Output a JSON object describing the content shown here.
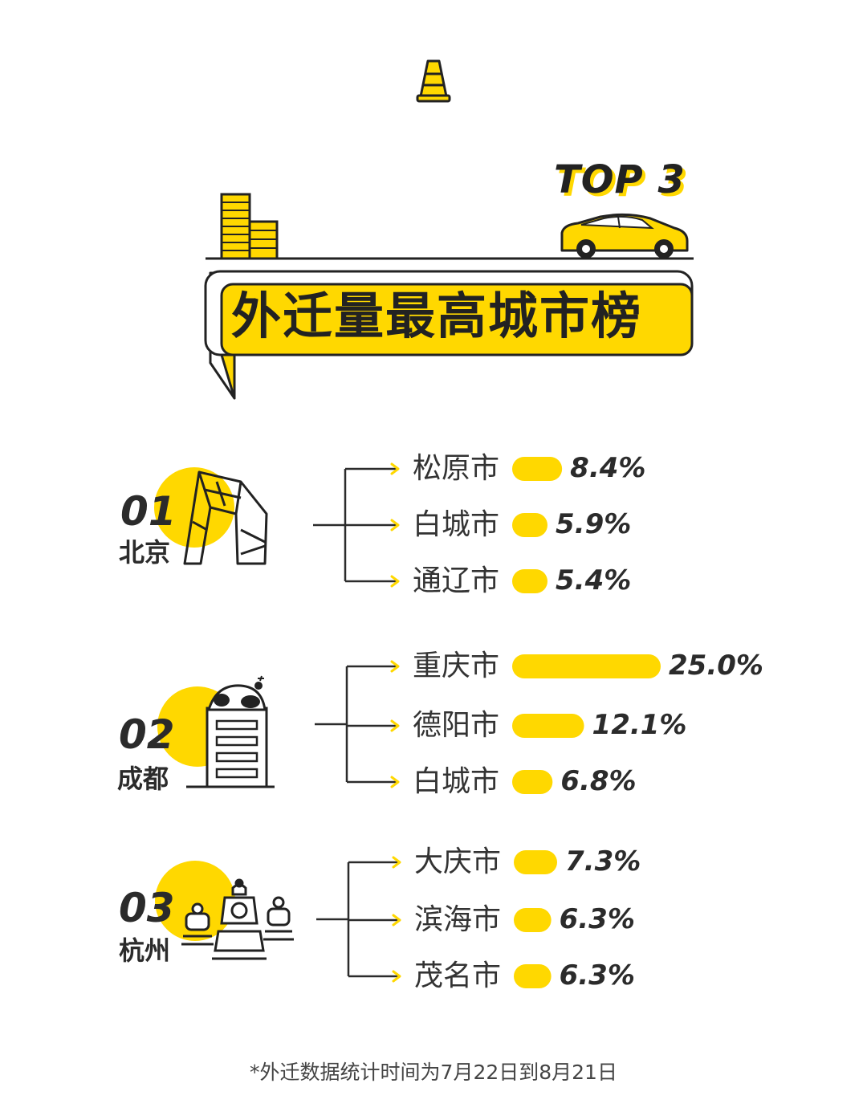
{
  "header": {
    "badge": "TOP 3",
    "title": "外迁量最高城市榜"
  },
  "footnote": "*外迁数据统计时间为7月22日到8月21日",
  "colors": {
    "accent": "#FFD800",
    "ink": "#2b2b2b"
  },
  "chart_data": {
    "type": "bar",
    "unit": "%",
    "groups": [
      {
        "rank": "01",
        "origin": "北京",
        "icon": "cctv-tower-icon",
        "destinations": [
          {
            "name": "松原市",
            "value": 8.4,
            "label": "8.4%"
          },
          {
            "name": "白城市",
            "value": 5.9,
            "label": "5.9%"
          },
          {
            "name": "通辽市",
            "value": 5.4,
            "label": "5.4%"
          }
        ]
      },
      {
        "rank": "02",
        "origin": "成都",
        "icon": "panda-building-icon",
        "destinations": [
          {
            "name": "重庆市",
            "value": 25.0,
            "label": "25.0%"
          },
          {
            "name": "德阳市",
            "value": 12.1,
            "label": "12.1%"
          },
          {
            "name": "白城市",
            "value": 6.8,
            "label": "6.8%"
          }
        ]
      },
      {
        "rank": "03",
        "origin": "杭州",
        "icon": "pagoda-icon",
        "destinations": [
          {
            "name": "大庆市",
            "value": 7.3,
            "label": "7.3%"
          },
          {
            "name": "滨海市",
            "value": 6.3,
            "label": "6.3%"
          },
          {
            "name": "茂名市",
            "value": 6.3,
            "label": "6.3%"
          }
        ]
      }
    ]
  }
}
